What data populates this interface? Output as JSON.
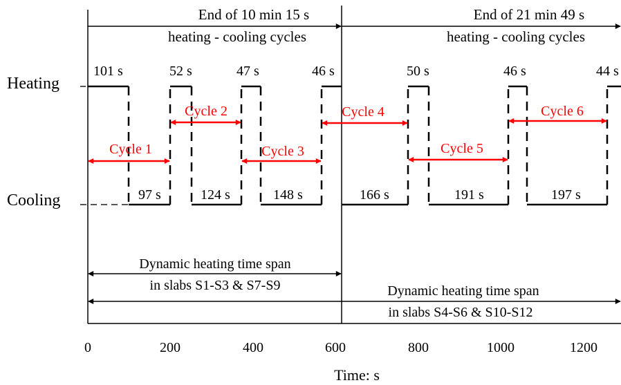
{
  "labels": {
    "heating": "Heating",
    "cooling": "Cooling",
    "x_axis_title": "Time:  s",
    "end_first_line1": "End of 10 min 15 s",
    "end_first_line2": "heating - cooling cycles",
    "end_second_line1": "End of 21 min 49 s",
    "end_second_line2": "heating - cooling cycles",
    "span_first_line1": "Dynamic heating time span",
    "span_first_line2": "in slabs S1-S3  & S7-S9",
    "span_second_line1": "Dynamic heating time span",
    "span_second_line2": "in slabs S4-S6  & S10-S12"
  },
  "x_ticks": [
    "0",
    "200",
    "400",
    "600",
    "800",
    "1000",
    "1200"
  ],
  "heating_durations": [
    "101 s",
    "52  s",
    "47  s",
    "46  s",
    "50  s",
    "46  s",
    "44  s"
  ],
  "cooling_durations": [
    "97  s",
    "124  s",
    "148  s",
    "166  s",
    "191  s",
    "197  s"
  ],
  "cycles": [
    "Cycle 1",
    "Cycle 2",
    "Cycle 3",
    "Cycle 4",
    "Cycle 5",
    "Cycle 6"
  ],
  "colors": {
    "line": "#000000",
    "cycle": "#ff0000",
    "background": "#ffffff"
  }
}
